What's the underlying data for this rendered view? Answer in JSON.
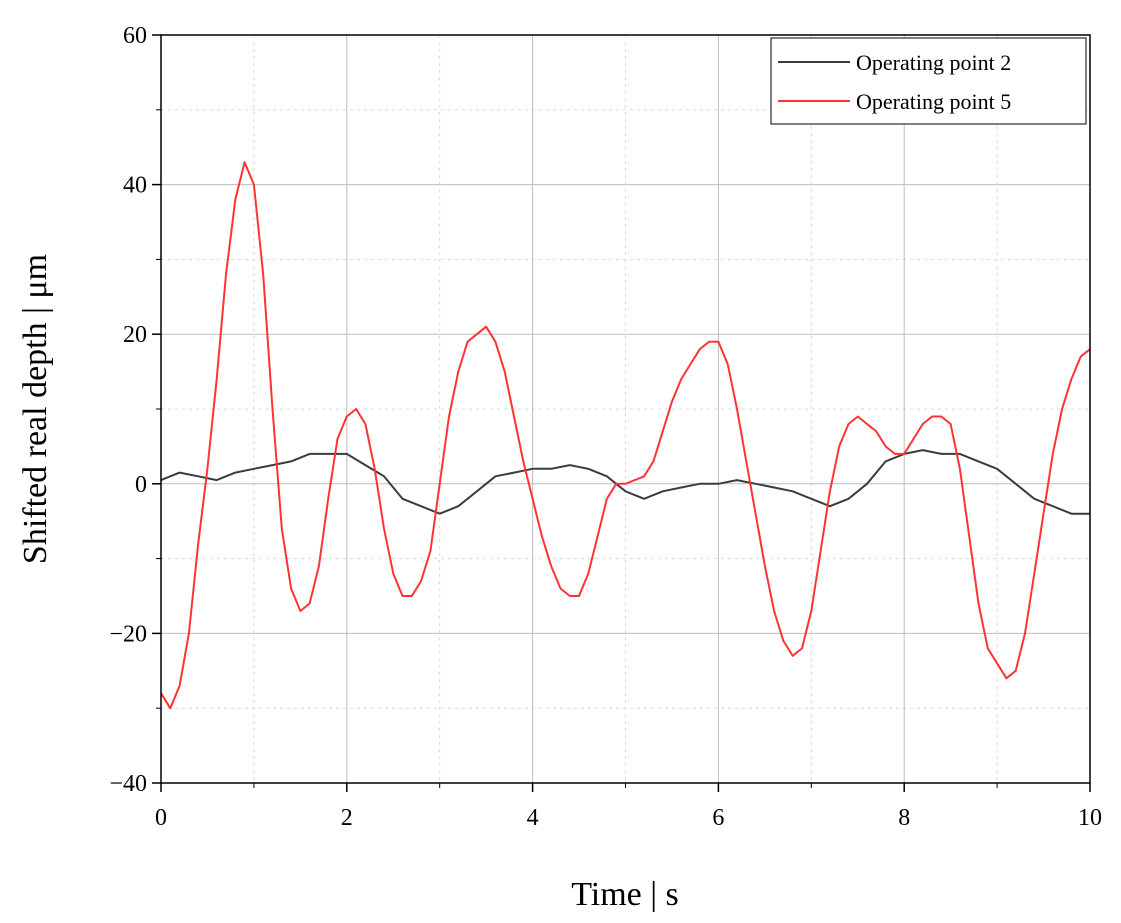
{
  "chart_data": {
    "type": "line",
    "xlabel": "Time | s",
    "ylabel": "Shifted real depth | μm",
    "xlim": [
      0,
      10
    ],
    "ylim": [
      -40,
      60
    ],
    "xticks": [
      0,
      2,
      4,
      6,
      8,
      10
    ],
    "yticks": [
      -40,
      -20,
      0,
      20,
      40,
      60
    ],
    "xtick_labels": [
      "0",
      "2",
      "4",
      "6",
      "8",
      "10"
    ],
    "ytick_labels": [
      "−40",
      "−20",
      "0",
      "20",
      "40",
      "60"
    ],
    "grid": true,
    "legend_position": "top-right",
    "series": [
      {
        "name": "Operating point 2",
        "color": "#3c3c3c",
        "x": [
          0,
          0.2,
          0.4,
          0.6,
          0.8,
          1.0,
          1.2,
          1.4,
          1.6,
          1.8,
          2.0,
          2.2,
          2.4,
          2.6,
          2.8,
          3.0,
          3.2,
          3.4,
          3.6,
          3.8,
          4.0,
          4.2,
          4.4,
          4.6,
          4.8,
          5.0,
          5.2,
          5.4,
          5.6,
          5.8,
          6.0,
          6.2,
          6.4,
          6.6,
          6.8,
          7.0,
          7.2,
          7.4,
          7.6,
          7.8,
          8.0,
          8.2,
          8.4,
          8.6,
          8.8,
          9.0,
          9.2,
          9.4,
          9.6,
          9.8,
          10.0
        ],
        "y": [
          0.5,
          1.5,
          1,
          0.5,
          1.5,
          2,
          2.5,
          3,
          4,
          4,
          4,
          2.5,
          1,
          -2,
          -3,
          -4,
          -3,
          -1,
          1,
          1.5,
          2,
          2,
          2.5,
          2,
          1,
          -1,
          -2,
          -1,
          -0.5,
          0,
          0,
          0.5,
          0,
          -0.5,
          -1,
          -2,
          -3,
          -2,
          0,
          3,
          4,
          4.5,
          4,
          4,
          3,
          2,
          0,
          -2,
          -3,
          -4,
          -4
        ]
      },
      {
        "name": "Operating point 5",
        "color": "#ff3333",
        "x": [
          0,
          0.1,
          0.2,
          0.3,
          0.4,
          0.5,
          0.6,
          0.7,
          0.8,
          0.9,
          1.0,
          1.1,
          1.2,
          1.3,
          1.4,
          1.5,
          1.6,
          1.7,
          1.8,
          1.9,
          2.0,
          2.1,
          2.2,
          2.3,
          2.4,
          2.5,
          2.6,
          2.7,
          2.8,
          2.9,
          3.0,
          3.1,
          3.2,
          3.3,
          3.4,
          3.5,
          3.6,
          3.7,
          3.8,
          3.9,
          4.0,
          4.1,
          4.2,
          4.3,
          4.4,
          4.5,
          4.6,
          4.7,
          4.8,
          4.9,
          5.0,
          5.1,
          5.2,
          5.3,
          5.4,
          5.5,
          5.6,
          5.7,
          5.8,
          5.9,
          6.0,
          6.1,
          6.2,
          6.3,
          6.4,
          6.5,
          6.6,
          6.7,
          6.8,
          6.9,
          7.0,
          7.1,
          7.2,
          7.3,
          7.4,
          7.5,
          7.6,
          7.7,
          7.8,
          7.9,
          8.0,
          8.1,
          8.2,
          8.3,
          8.4,
          8.5,
          8.6,
          8.7,
          8.8,
          8.9,
          9.0,
          9.1,
          9.2,
          9.3,
          9.4,
          9.5,
          9.6,
          9.7,
          9.8,
          9.9,
          10.0
        ],
        "y": [
          -28,
          -30,
          -27,
          -20,
          -8,
          2,
          14,
          28,
          38,
          43,
          40,
          28,
          10,
          -6,
          -14,
          -17,
          -16,
          -11,
          -2,
          6,
          9,
          10,
          8,
          2,
          -6,
          -12,
          -15,
          -15,
          -13,
          -9,
          0,
          9,
          15,
          19,
          20,
          21,
          19,
          15,
          9,
          3,
          -2,
          -7,
          -11,
          -14,
          -15,
          -15,
          -12,
          -7,
          -2,
          0,
          0,
          0.5,
          1,
          3,
          7,
          11,
          14,
          16,
          18,
          19,
          19,
          16,
          10,
          3,
          -4,
          -11,
          -17,
          -21,
          -23,
          -22,
          -17,
          -9,
          -1,
          5,
          8,
          9,
          8,
          7,
          5,
          4,
          4,
          6,
          8,
          9,
          9,
          8,
          2,
          -7,
          -16,
          -22,
          -24,
          -26,
          -25,
          -20,
          -12,
          -4,
          4,
          10,
          14,
          17,
          18
        ]
      }
    ]
  }
}
